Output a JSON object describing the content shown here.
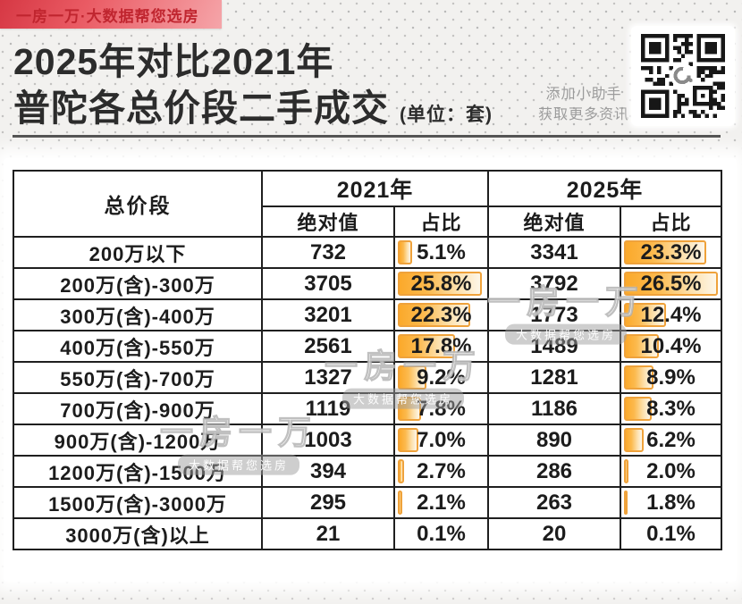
{
  "banner": {
    "label": "一房一万·大数据帮您选房"
  },
  "title": {
    "line1": "2025年对比2021年",
    "line2": "普陀各总价段二手成交",
    "unit": "(单位：套)"
  },
  "qr_note": {
    "line1": "添加小助手",
    "line2": "获取更多资讯"
  },
  "watermark": {
    "title": "一房一万",
    "subtitle": "大数据帮您选房"
  },
  "colors": {
    "accent_red": "#d63844",
    "banner_text": "#c0252f",
    "bar_fill": "#fba92b",
    "bar_border": "#efa23b",
    "table_border": "#1f1f1f"
  },
  "chart_data": {
    "type": "table",
    "title": "2025年对比2021年普陀各总价段二手成交",
    "unit_label": "(单位：套)",
    "bar_scale_max_pct": 26.5,
    "header": {
      "price_col": "总价段",
      "year_2021": "2021年",
      "year_2025": "2025年",
      "abs_label": "绝对值",
      "pct_label": "占比"
    },
    "rows": [
      {
        "label": "200万以下",
        "abs2021": "732",
        "pct2021": "5.1%",
        "abs2025": "3341",
        "pct2025": "23.3%"
      },
      {
        "label": "200万(含)-300万",
        "abs2021": "3705",
        "pct2021": "25.8%",
        "abs2025": "3792",
        "pct2025": "26.5%"
      },
      {
        "label": "300万(含)-400万",
        "abs2021": "3201",
        "pct2021": "22.3%",
        "abs2025": "1773",
        "pct2025": "12.4%"
      },
      {
        "label": "400万(含)-550万",
        "abs2021": "2561",
        "pct2021": "17.8%",
        "abs2025": "1489",
        "pct2025": "10.4%"
      },
      {
        "label": "550万(含)-700万",
        "abs2021": "1327",
        "pct2021": "9.2%",
        "abs2025": "1281",
        "pct2025": "8.9%"
      },
      {
        "label": "700万(含)-900万",
        "abs2021": "1119",
        "pct2021": "7.8%",
        "abs2025": "1186",
        "pct2025": "8.3%"
      },
      {
        "label": "900万(含)-1200万",
        "abs2021": "1003",
        "pct2021": "7.0%",
        "abs2025": "890",
        "pct2025": "6.2%"
      },
      {
        "label": "1200万(含)-1500万",
        "abs2021": "394",
        "pct2021": "2.7%",
        "abs2025": "286",
        "pct2025": "2.0%"
      },
      {
        "label": "1500万(含)-3000万",
        "abs2021": "295",
        "pct2021": "2.1%",
        "abs2025": "263",
        "pct2025": "1.8%"
      },
      {
        "label": "3000万(含)以上",
        "abs2021": "21",
        "pct2021": "0.1%",
        "abs2025": "20",
        "pct2025": "0.1%"
      }
    ]
  }
}
